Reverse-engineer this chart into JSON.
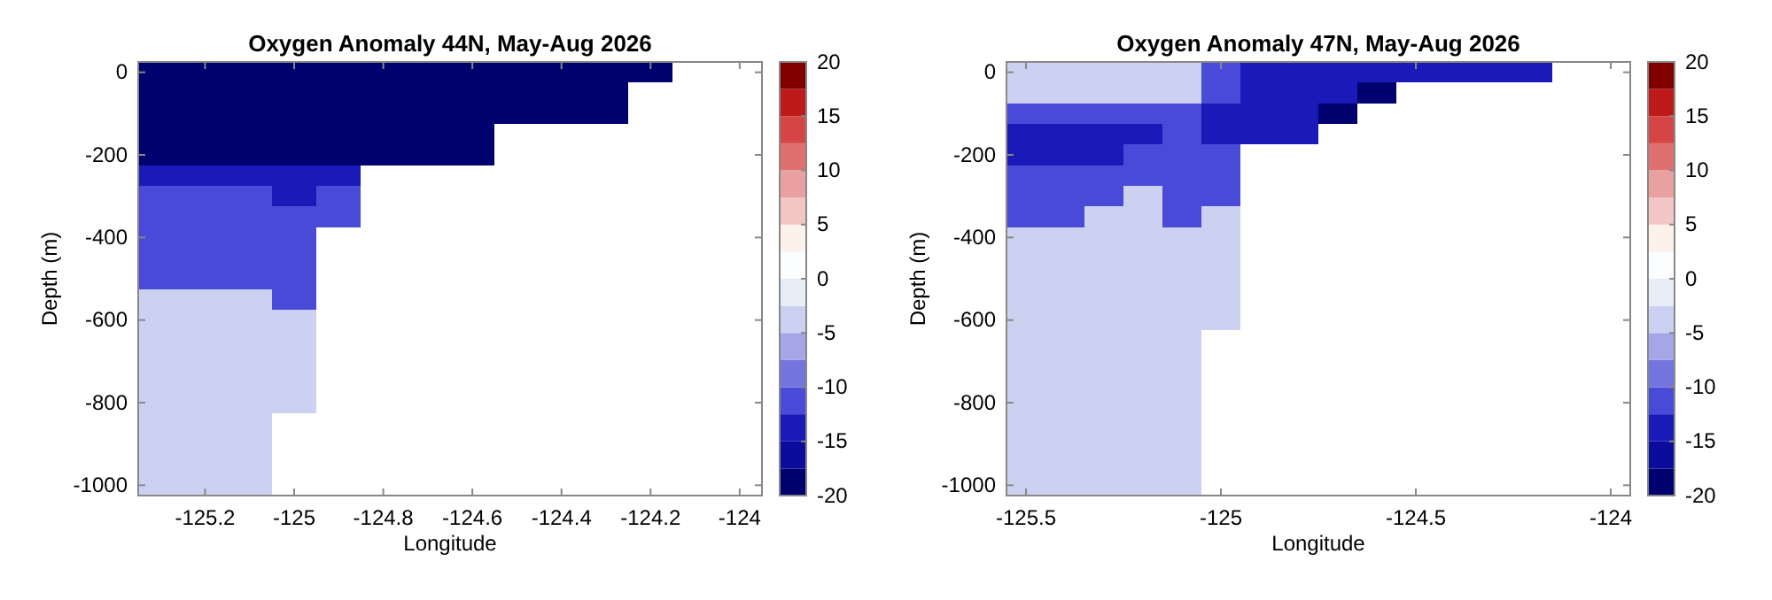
{
  "chart_data": [
    {
      "type": "heatmap",
      "title": "Oxygen Anomaly 44N, May-Aug 2026",
      "xlabel": "Longitude",
      "ylabel": "Depth (m)",
      "categories": [
        null,
        "-125.2",
        null,
        "-125",
        null,
        "-124.8",
        null,
        "-124.6",
        null,
        "-124.4",
        null,
        "-124.2",
        null,
        "-124"
      ],
      "y_categories": [
        "0",
        null,
        null,
        null,
        "-200",
        null,
        null,
        null,
        "-400",
        null,
        null,
        null,
        "-600",
        null,
        null,
        null,
        "-800",
        null,
        null,
        null,
        "-1000"
      ],
      "clim": [
        -20,
        20
      ],
      "cticks": [
        -20,
        -15,
        -10,
        -5,
        0,
        5,
        10,
        15,
        20
      ],
      "cells": [
        [
          -19,
          -19,
          -19,
          -19,
          -19,
          -19,
          -19,
          -19,
          -19,
          -19,
          -19,
          -19,
          null,
          null
        ],
        [
          -19,
          -19,
          -19,
          -19,
          -19,
          -19,
          -19,
          -19,
          -19,
          -19,
          -19,
          null,
          null,
          null
        ],
        [
          -19,
          -19,
          -19,
          -19,
          -19,
          -19,
          -19,
          -19,
          -19,
          -19,
          -19,
          null,
          null,
          null
        ],
        [
          -19,
          -19,
          -19,
          -19,
          -19,
          -19,
          -19,
          -19,
          null,
          null,
          null,
          null,
          null,
          null
        ],
        [
          -19,
          -19,
          -19,
          -19,
          -19,
          -19,
          -19,
          -19,
          null,
          null,
          null,
          null,
          null,
          null
        ],
        [
          -14,
          -14,
          -14,
          -14,
          -14,
          null,
          null,
          null,
          null,
          null,
          null,
          null,
          null,
          null
        ],
        [
          -11,
          -11,
          -11,
          -14,
          -11,
          null,
          null,
          null,
          null,
          null,
          null,
          null,
          null,
          null
        ],
        [
          -11,
          -11,
          -11,
          -11,
          -11,
          null,
          null,
          null,
          null,
          null,
          null,
          null,
          null,
          null
        ],
        [
          -11,
          -11,
          -11,
          -11,
          null,
          null,
          null,
          null,
          null,
          null,
          null,
          null,
          null,
          null
        ],
        [
          -11,
          -11,
          -11,
          -11,
          null,
          null,
          null,
          null,
          null,
          null,
          null,
          null,
          null,
          null
        ],
        [
          -11,
          -11,
          -11,
          -11,
          null,
          null,
          null,
          null,
          null,
          null,
          null,
          null,
          null,
          null
        ],
        [
          -4,
          -4,
          -4,
          -11,
          null,
          null,
          null,
          null,
          null,
          null,
          null,
          null,
          null,
          null
        ],
        [
          -4,
          -4,
          -4,
          -4,
          null,
          null,
          null,
          null,
          null,
          null,
          null,
          null,
          null,
          null
        ],
        [
          -4,
          -4,
          -4,
          -4,
          null,
          null,
          null,
          null,
          null,
          null,
          null,
          null,
          null,
          null
        ],
        [
          -4,
          -4,
          -4,
          -4,
          null,
          null,
          null,
          null,
          null,
          null,
          null,
          null,
          null,
          null
        ],
        [
          -4,
          -4,
          -4,
          -4,
          null,
          null,
          null,
          null,
          null,
          null,
          null,
          null,
          null,
          null
        ],
        [
          -4,
          -4,
          -4,
          -4,
          null,
          null,
          null,
          null,
          null,
          null,
          null,
          null,
          null,
          null
        ],
        [
          -4,
          -4,
          -4,
          null,
          null,
          null,
          null,
          null,
          null,
          null,
          null,
          null,
          null,
          null
        ],
        [
          -4,
          -4,
          -4,
          null,
          null,
          null,
          null,
          null,
          null,
          null,
          null,
          null,
          null,
          null
        ],
        [
          -4,
          -4,
          -4,
          null,
          null,
          null,
          null,
          null,
          null,
          null,
          null,
          null,
          null,
          null
        ],
        [
          -4,
          -4,
          -4,
          null,
          null,
          null,
          null,
          null,
          null,
          null,
          null,
          null,
          null,
          null
        ]
      ]
    },
    {
      "type": "heatmap",
      "title": "Oxygen Anomaly 47N, May-Aug 2026",
      "xlabel": "Longitude",
      "ylabel": "Depth (m)",
      "categories": [
        "-125.5",
        null,
        null,
        null,
        null,
        "-125",
        null,
        null,
        null,
        null,
        "-124.5",
        null,
        null,
        null,
        null,
        "-124"
      ],
      "y_categories": [
        "0",
        null,
        null,
        null,
        "-200",
        null,
        null,
        null,
        "-400",
        null,
        null,
        null,
        "-600",
        null,
        null,
        null,
        "-800",
        null,
        null,
        null,
        "-1000"
      ],
      "clim": [
        -20,
        20
      ],
      "cticks": [
        -20,
        -15,
        -10,
        -5,
        0,
        5,
        10,
        15,
        20
      ],
      "cells": [
        [
          -4,
          -4,
          -4,
          -4,
          -4,
          -11,
          -14,
          -14,
          -14,
          -14,
          -14,
          -14,
          -14,
          -14,
          null,
          null
        ],
        [
          -4,
          -4,
          -4,
          -4,
          -4,
          -11,
          -14,
          -14,
          -14,
          -19,
          null,
          null,
          null,
          null,
          null,
          null
        ],
        [
          -11,
          -11,
          -11,
          -11,
          -11,
          -14,
          -14,
          -14,
          -19,
          null,
          null,
          null,
          null,
          null,
          null,
          null
        ],
        [
          -14,
          -14,
          -14,
          -14,
          -11,
          -14,
          -14,
          -14,
          null,
          null,
          null,
          null,
          null,
          null,
          null,
          null
        ],
        [
          -14,
          -14,
          -14,
          -11,
          -11,
          -11,
          null,
          null,
          null,
          null,
          null,
          null,
          null,
          null,
          null,
          null
        ],
        [
          -11,
          -11,
          -11,
          -11,
          -11,
          -11,
          null,
          null,
          null,
          null,
          null,
          null,
          null,
          null,
          null,
          null
        ],
        [
          -11,
          -11,
          -11,
          -4,
          -11,
          -11,
          null,
          null,
          null,
          null,
          null,
          null,
          null,
          null,
          null,
          null
        ],
        [
          -11,
          -11,
          -4,
          -4,
          -11,
          -4,
          null,
          null,
          null,
          null,
          null,
          null,
          null,
          null,
          null,
          null
        ],
        [
          -4,
          -4,
          -4,
          -4,
          -4,
          -4,
          null,
          null,
          null,
          null,
          null,
          null,
          null,
          null,
          null,
          null
        ],
        [
          -4,
          -4,
          -4,
          -4,
          -4,
          -4,
          null,
          null,
          null,
          null,
          null,
          null,
          null,
          null,
          null,
          null
        ],
        [
          -4,
          -4,
          -4,
          -4,
          -4,
          -4,
          null,
          null,
          null,
          null,
          null,
          null,
          null,
          null,
          null,
          null
        ],
        [
          -4,
          -4,
          -4,
          -4,
          -4,
          -4,
          null,
          null,
          null,
          null,
          null,
          null,
          null,
          null,
          null,
          null
        ],
        [
          -4,
          -4,
          -4,
          -4,
          -4,
          -4,
          null,
          null,
          null,
          null,
          null,
          null,
          null,
          null,
          null,
          null
        ],
        [
          -4,
          -4,
          -4,
          -4,
          -4,
          null,
          null,
          null,
          null,
          null,
          null,
          null,
          null,
          null,
          null,
          null
        ],
        [
          -4,
          -4,
          -4,
          -4,
          -4,
          null,
          null,
          null,
          null,
          null,
          null,
          null,
          null,
          null,
          null,
          null
        ],
        [
          -4,
          -4,
          -4,
          -4,
          -4,
          null,
          null,
          null,
          null,
          null,
          null,
          null,
          null,
          null,
          null,
          null
        ],
        [
          -4,
          -4,
          -4,
          -4,
          -4,
          null,
          null,
          null,
          null,
          null,
          null,
          null,
          null,
          null,
          null,
          null
        ],
        [
          -4,
          -4,
          -4,
          -4,
          -4,
          null,
          null,
          null,
          null,
          null,
          null,
          null,
          null,
          null,
          null,
          null
        ],
        [
          -4,
          -4,
          -4,
          -4,
          -4,
          null,
          null,
          null,
          null,
          null,
          null,
          null,
          null,
          null,
          null,
          null
        ],
        [
          -4,
          -4,
          -4,
          -4,
          -4,
          null,
          null,
          null,
          null,
          null,
          null,
          null,
          null,
          null,
          null,
          null
        ],
        [
          -4,
          -4,
          -4,
          -4,
          -4,
          null,
          null,
          null,
          null,
          null,
          null,
          null,
          null,
          null,
          null,
          null
        ]
      ]
    }
  ]
}
